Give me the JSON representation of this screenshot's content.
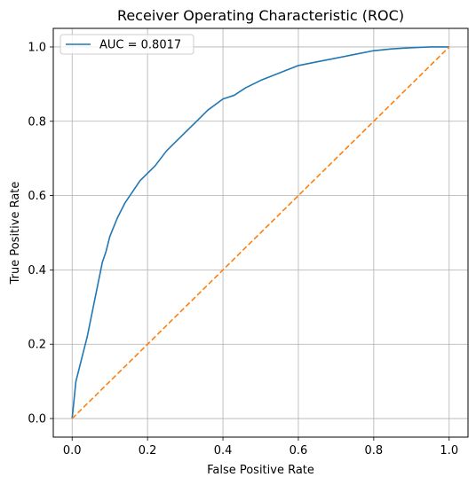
{
  "chart_data": {
    "type": "line",
    "title": "Receiver Operating Characteristic (ROC)",
    "xlabel": "False Positive Rate",
    "ylabel": "True Positive Rate",
    "xlim": [
      -0.05,
      1.05
    ],
    "ylim": [
      -0.05,
      1.05
    ],
    "xticks": [
      0.0,
      0.2,
      0.4,
      0.6,
      0.8,
      1.0
    ],
    "yticks": [
      0.0,
      0.2,
      0.4,
      0.6,
      0.8,
      1.0
    ],
    "xtick_labels": [
      "0.0",
      "0.2",
      "0.4",
      "0.6",
      "0.8",
      "1.0"
    ],
    "ytick_labels": [
      "0.0",
      "0.2",
      "0.4",
      "0.6",
      "0.8",
      "1.0"
    ],
    "grid": true,
    "legend": {
      "position": "upper-left"
    },
    "series": [
      {
        "name": "AUC = 0.8017",
        "color": "#1f77b4",
        "style": "solid",
        "x": [
          0.0,
          0.005,
          0.01,
          0.02,
          0.03,
          0.04,
          0.05,
          0.06,
          0.07,
          0.08,
          0.09,
          0.1,
          0.12,
          0.14,
          0.16,
          0.18,
          0.2,
          0.22,
          0.25,
          0.28,
          0.3,
          0.33,
          0.36,
          0.4,
          0.43,
          0.46,
          0.5,
          0.55,
          0.6,
          0.65,
          0.7,
          0.75,
          0.8,
          0.85,
          0.9,
          0.95,
          1.0
        ],
        "y": [
          0.0,
          0.05,
          0.1,
          0.14,
          0.18,
          0.22,
          0.27,
          0.32,
          0.37,
          0.42,
          0.45,
          0.49,
          0.54,
          0.58,
          0.61,
          0.64,
          0.66,
          0.68,
          0.72,
          0.75,
          0.77,
          0.8,
          0.83,
          0.86,
          0.87,
          0.89,
          0.91,
          0.93,
          0.95,
          0.96,
          0.97,
          0.98,
          0.99,
          0.995,
          0.998,
          1.0,
          1.0
        ]
      },
      {
        "name": "",
        "color": "#ff7f0e",
        "style": "dashed",
        "x": [
          0.0,
          1.0
        ],
        "y": [
          0.0,
          1.0
        ]
      }
    ]
  }
}
